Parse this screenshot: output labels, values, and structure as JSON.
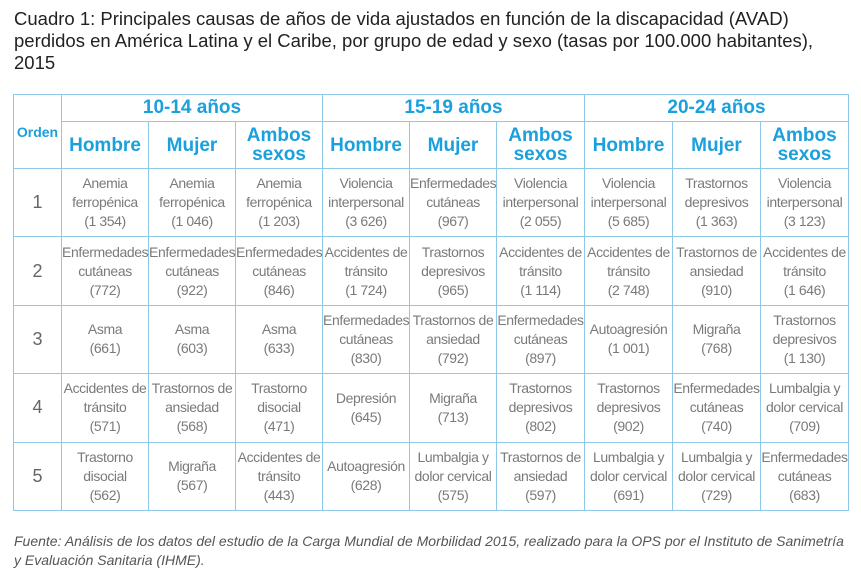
{
  "title": "Cuadro 1: Principales causas de años de vida ajustados en función de la discapacidad (AVAD) perdidos en América Latina y el Caribe, por grupo de edad y sexo (tasas por 100.000 habitantes), 2015",
  "header": {
    "orden": "Orden",
    "groups": [
      "10-14 años",
      "15-19 años",
      "20-24 años"
    ],
    "sexes": [
      "Hombre",
      "Mujer",
      "Ambos sexos"
    ]
  },
  "rows": [
    {
      "orden": "1",
      "cells": [
        {
          "cause": "Anemia ferropénica",
          "value": "(1 354)"
        },
        {
          "cause": "Anemia ferropénica",
          "value": "(1 046)"
        },
        {
          "cause": "Anemia ferropénica",
          "value": "(1 203)"
        },
        {
          "cause": "Violencia interpersonal",
          "value": "(3 626)"
        },
        {
          "cause": "Enfermedades cutáneas",
          "value": "(967)"
        },
        {
          "cause": "Violencia interpersonal",
          "value": "(2 055)"
        },
        {
          "cause": "Violencia interpersonal",
          "value": "(5 685)"
        },
        {
          "cause": "Trastornos depresivos",
          "value": "(1 363)"
        },
        {
          "cause": "Violencia interpersonal",
          "value": "(3 123)"
        }
      ]
    },
    {
      "orden": "2",
      "cells": [
        {
          "cause": "Enfermedades cutáneas",
          "value": "(772)"
        },
        {
          "cause": "Enfermedades cutáneas",
          "value": "(922)"
        },
        {
          "cause": "Enfermedades cutáneas",
          "value": "(846)"
        },
        {
          "cause": "Accidentes de tránsito",
          "value": "(1 724)"
        },
        {
          "cause": "Trastornos depresivos",
          "value": "(965)"
        },
        {
          "cause": "Accidentes de tránsito",
          "value": "(1 114)"
        },
        {
          "cause": "Accidentes de tránsito",
          "value": "(2 748)"
        },
        {
          "cause": "Trastornos de ansiedad",
          "value": "(910)"
        },
        {
          "cause": "Accidentes de tránsito",
          "value": "(1 646)"
        }
      ]
    },
    {
      "orden": "3",
      "cells": [
        {
          "cause": "Asma",
          "value": "(661)"
        },
        {
          "cause": "Asma",
          "value": "(603)"
        },
        {
          "cause": "Asma",
          "value": "(633)"
        },
        {
          "cause": "Enfermedades cutáneas",
          "value": "(830)"
        },
        {
          "cause": "Trastornos de ansiedad",
          "value": "(792)"
        },
        {
          "cause": "Enfermedades cutáneas",
          "value": "(897)"
        },
        {
          "cause": "Autoagresión",
          "value": "(1 001)"
        },
        {
          "cause": "Migraña",
          "value": "(768)"
        },
        {
          "cause": "Trastornos depresivos",
          "value": "(1 130)"
        }
      ]
    },
    {
      "orden": "4",
      "cells": [
        {
          "cause": "Accidentes de tránsito",
          "value": "(571)"
        },
        {
          "cause": "Trastornos de ansiedad",
          "value": "(568)"
        },
        {
          "cause": "Trastorno disocial",
          "value": "(471)"
        },
        {
          "cause": "Depresión",
          "value": "(645)"
        },
        {
          "cause": "Migraña",
          "value": "(713)"
        },
        {
          "cause": "Trastornos depresivos",
          "value": "(802)"
        },
        {
          "cause": "Trastornos depresivos",
          "value": "(902)"
        },
        {
          "cause": "Enfermedades cutáneas",
          "value": "(740)"
        },
        {
          "cause": "Lumbalgia y dolor cervical",
          "value": "(709)"
        }
      ]
    },
    {
      "orden": "5",
      "cells": [
        {
          "cause": "Trastorno disocial",
          "value": "(562)"
        },
        {
          "cause": "Migraña",
          "value": "(567)"
        },
        {
          "cause": "Accidentes de tránsito",
          "value": "(443)"
        },
        {
          "cause": "Autoagresión",
          "value": "(628)"
        },
        {
          "cause": "Lumbalgia y dolor cervical",
          "value": "(575)"
        },
        {
          "cause": "Trastornos de ansiedad",
          "value": "(597)"
        },
        {
          "cause": "Lumbalgia y dolor cervical",
          "value": "(691)"
        },
        {
          "cause": "Lumbalgia y dolor cervical",
          "value": "(729)"
        },
        {
          "cause": "Enfermedades cutáneas",
          "value": "(683)"
        }
      ]
    }
  ],
  "source": "Fuente: Análisis de los datos del estudio de la Carga Mundial de Morbilidad 2015, realizado para la OPS por el Instituto de Sanimetría y Evaluación Sanitaria (IHME).",
  "colors": {
    "header_text": "#1aa0dc",
    "border": "#8ec9ea",
    "cell_text": "#7a7a7a"
  }
}
